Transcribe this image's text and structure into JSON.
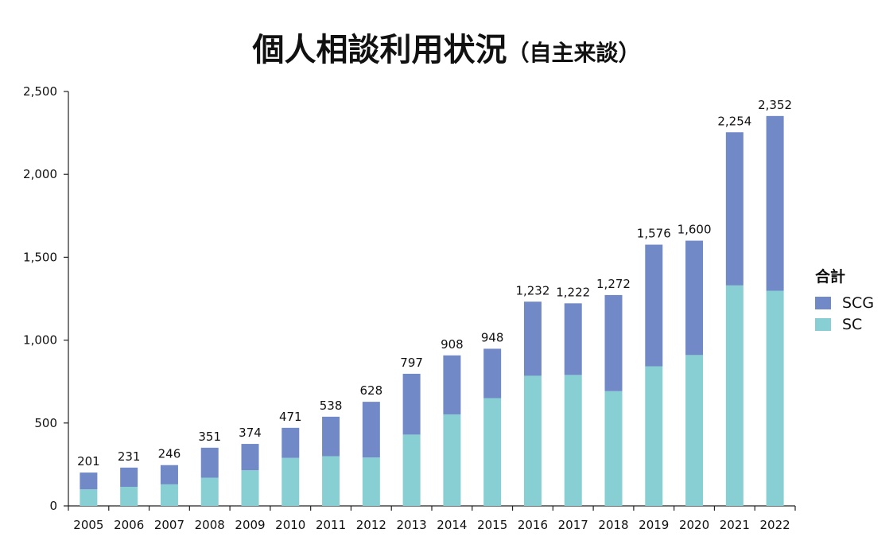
{
  "chart_data": {
    "type": "bar",
    "stacked": true,
    "title": "個人相談利用状況",
    "subtitle": "（自主来談）",
    "categories": [
      "2005",
      "2006",
      "2007",
      "2008",
      "2009",
      "2010",
      "2011",
      "2012",
      "2013",
      "2014",
      "2015",
      "2016",
      "2017",
      "2018",
      "2019",
      "2020",
      "2021",
      "2022"
    ],
    "series": [
      {
        "name": "SC",
        "color": "#87cfd3",
        "values": [
          100,
          115,
          130,
          170,
          215,
          290,
          300,
          292,
          430,
          552,
          650,
          785,
          790,
          692,
          842,
          910,
          1330,
          1298
        ]
      },
      {
        "name": "SCG",
        "color": "#7189c7",
        "values": [
          101,
          116,
          116,
          181,
          159,
          181,
          238,
          336,
          367,
          356,
          298,
          447,
          432,
          580,
          734,
          690,
          924,
          1054
        ]
      }
    ],
    "totals": [
      "201",
      "231",
      "246",
      "351",
      "374",
      "471",
      "538",
      "628",
      "797",
      "908",
      "948",
      "1,232",
      "1,222",
      "1,272",
      "1,576",
      "1,600",
      "2,254",
      "2,352"
    ],
    "ylim": [
      0,
      2500
    ],
    "yticks": [
      0,
      500,
      1000,
      1500,
      2000,
      2500
    ],
    "ytick_labels": [
      "0",
      "500",
      "1,000",
      "1,500",
      "2,000",
      "2,500"
    ],
    "grid": false,
    "legend": {
      "title": "合計",
      "position": "right",
      "items": [
        "SCG",
        "SC"
      ]
    }
  }
}
